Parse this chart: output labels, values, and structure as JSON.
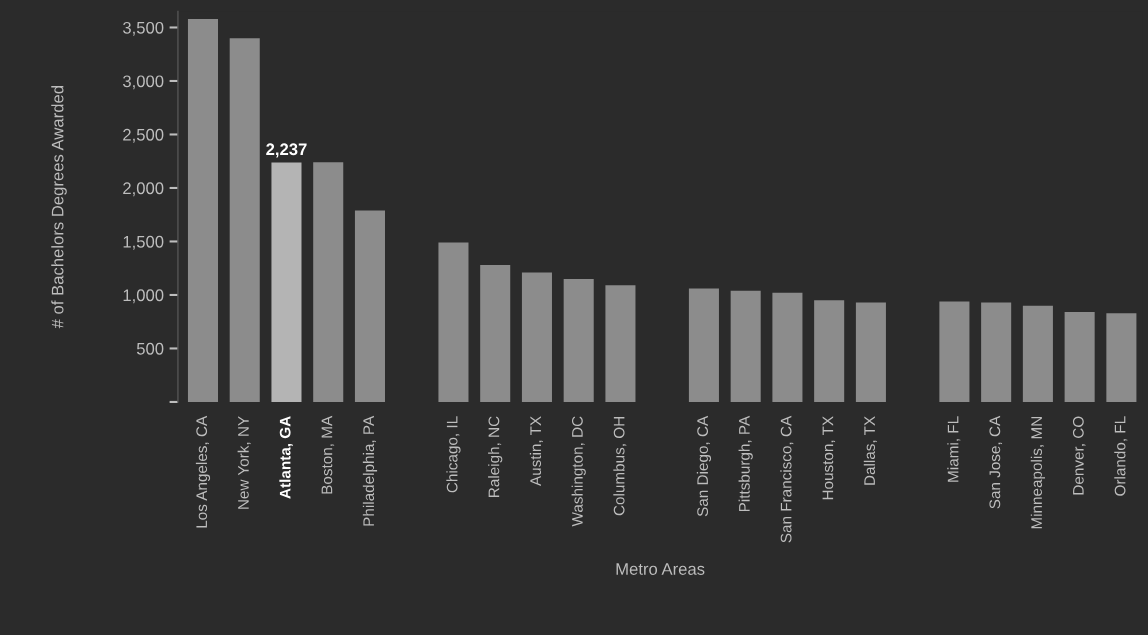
{
  "chart_data": {
    "type": "bar",
    "xlabel": "Metro Areas",
    "ylabel": "# of Bachelors Degrees Awarded",
    "categories": [
      "Los Angeles, CA",
      "New York, NY",
      "Atlanta, GA",
      "Boston, MA",
      "Philadelphia, PA",
      null,
      "Chicago, IL",
      "Raleigh, NC",
      "Austin, TX",
      "Washington, DC",
      "Columbus, OH",
      null,
      "San Diego, CA",
      "Pittsburgh, PA",
      "San Francisco, CA",
      "Houston, TX",
      "Dallas, TX",
      null,
      "Miami, FL",
      "San Jose, CA",
      "Minneapolis, MN",
      "Denver, CO",
      "Orlando, FL"
    ],
    "values": [
      3580,
      3400,
      2237,
      2240,
      1790,
      null,
      1490,
      1280,
      1210,
      1150,
      1090,
      null,
      1060,
      1040,
      1020,
      950,
      930,
      null,
      940,
      930,
      900,
      840,
      830
    ],
    "colors": [
      "#8c8c8c",
      "#8c8c8c",
      "#b4b4b4",
      "#8c8c8c",
      "#8c8c8c",
      null,
      "#8c8c8c",
      "#8c8c8c",
      "#8c8c8c",
      "#8c8c8c",
      "#8c8c8c",
      null,
      "#8c8c8c",
      "#8c8c8c",
      "#8c8c8c",
      "#8c8c8c",
      "#8c8c8c",
      null,
      "#8c8c8c",
      "#8c8c8c",
      "#8c8c8c",
      "#8c8c8c",
      "#8c8c8c"
    ],
    "value_labels": [
      null,
      null,
      "2,237",
      null,
      null,
      null,
      null,
      null,
      null,
      null,
      null,
      null,
      null,
      null,
      null,
      null,
      null,
      null,
      null,
      null,
      null,
      null,
      null
    ],
    "ylim": [
      0,
      3650
    ],
    "yticks": [
      {
        "value": 0,
        "label": null
      },
      {
        "value": 500,
        "label": "500"
      },
      {
        "value": 1000,
        "label": "1,000"
      },
      {
        "value": 1500,
        "label": "1,500"
      },
      {
        "value": 2000,
        "label": "2,000"
      },
      {
        "value": 2500,
        "label": "2,500"
      },
      {
        "value": 3000,
        "label": "3,000"
      },
      {
        "value": 3500,
        "label": "3,500"
      }
    ],
    "grid": false,
    "legend": false
  }
}
